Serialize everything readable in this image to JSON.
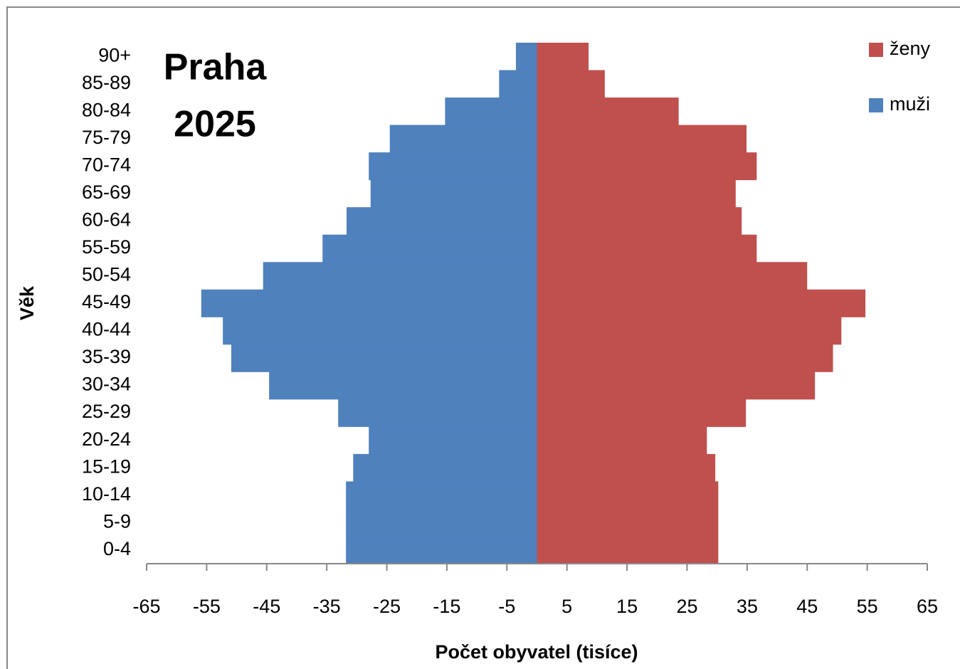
{
  "chart_data": {
    "type": "pyramid",
    "title": "Praha",
    "subtitle": "2025",
    "x_label": "Počet obyvatel (tisíce)",
    "y_label": "Věk",
    "categories": [
      "0-4",
      "5-9",
      "10-14",
      "15-19",
      "20-24",
      "25-29",
      "30-34",
      "35-39",
      "40-44",
      "45-49",
      "50-54",
      "55-59",
      "60-64",
      "65-69",
      "70-74",
      "75-79",
      "80-84",
      "85-89",
      "90+"
    ],
    "series": [
      {
        "name": "ženy",
        "color": "#c0504d",
        "values": [
          30.2,
          30.2,
          30.2,
          29.7,
          28.3,
          34.8,
          46.3,
          49.3,
          50.7,
          54.7,
          45,
          36.6,
          34.1,
          33.1,
          36.6,
          34.9,
          23.6,
          11.3,
          8.6
        ]
      },
      {
        "name": "muži",
        "color": "#4f81bd",
        "values": [
          -31.8,
          -31.8,
          -31.8,
          -30.6,
          -28,
          -33.1,
          -44.6,
          -50.9,
          -52.3,
          -55.9,
          -45.6,
          -35.7,
          -31.7,
          -27.7,
          -28,
          -24.5,
          -15.3,
          -6.3,
          -3.5
        ]
      }
    ],
    "xlim": [
      -65,
      65
    ],
    "xticks": [
      -65,
      -55,
      -45,
      -35,
      -25,
      -15,
      -5,
      5,
      15,
      25,
      35,
      45,
      55,
      65
    ],
    "legend": "top-right"
  }
}
